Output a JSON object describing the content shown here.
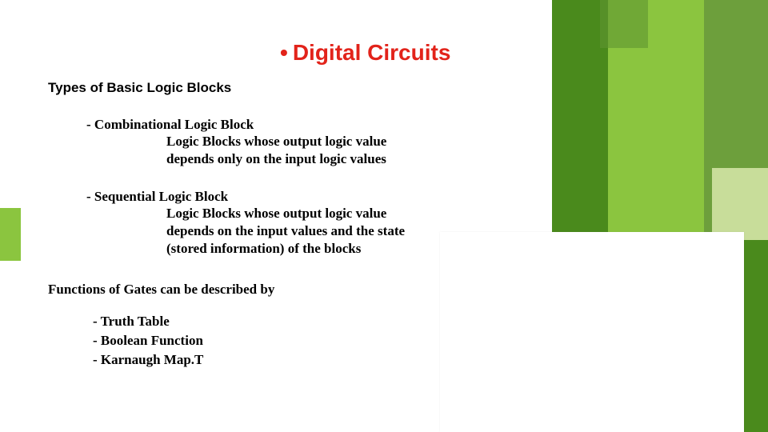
{
  "colors": {
    "title": "#e2231a",
    "text": "#000000",
    "bg": "#ffffff",
    "deco_dark": "#4a8a1c",
    "deco_mid": "#6d9f3c",
    "deco_light": "#8bc53f",
    "deco_pale": "#c8dd9a"
  },
  "title": {
    "bullet": "•",
    "text": "Digital Circuits"
  },
  "subhead": "Types of Basic Logic Blocks",
  "blocks": [
    {
      "label": "- Combinational Logic Block",
      "desc": "Logic Blocks whose output logic value depends only on the input logic values"
    },
    {
      "label": "- Sequential Logic Block",
      "desc": "Logic Blocks whose output logic value depends on the input values and the state (stored information) of the blocks"
    }
  ],
  "section2": "Functions of Gates can be described by",
  "list": [
    "- Truth Table",
    "- Boolean Function",
    "- Karnaugh Map.T"
  ],
  "fonts": {
    "title_family": "Verdana",
    "title_size_pt": 21,
    "body_family": "Georgia",
    "body_size_pt": 13
  }
}
